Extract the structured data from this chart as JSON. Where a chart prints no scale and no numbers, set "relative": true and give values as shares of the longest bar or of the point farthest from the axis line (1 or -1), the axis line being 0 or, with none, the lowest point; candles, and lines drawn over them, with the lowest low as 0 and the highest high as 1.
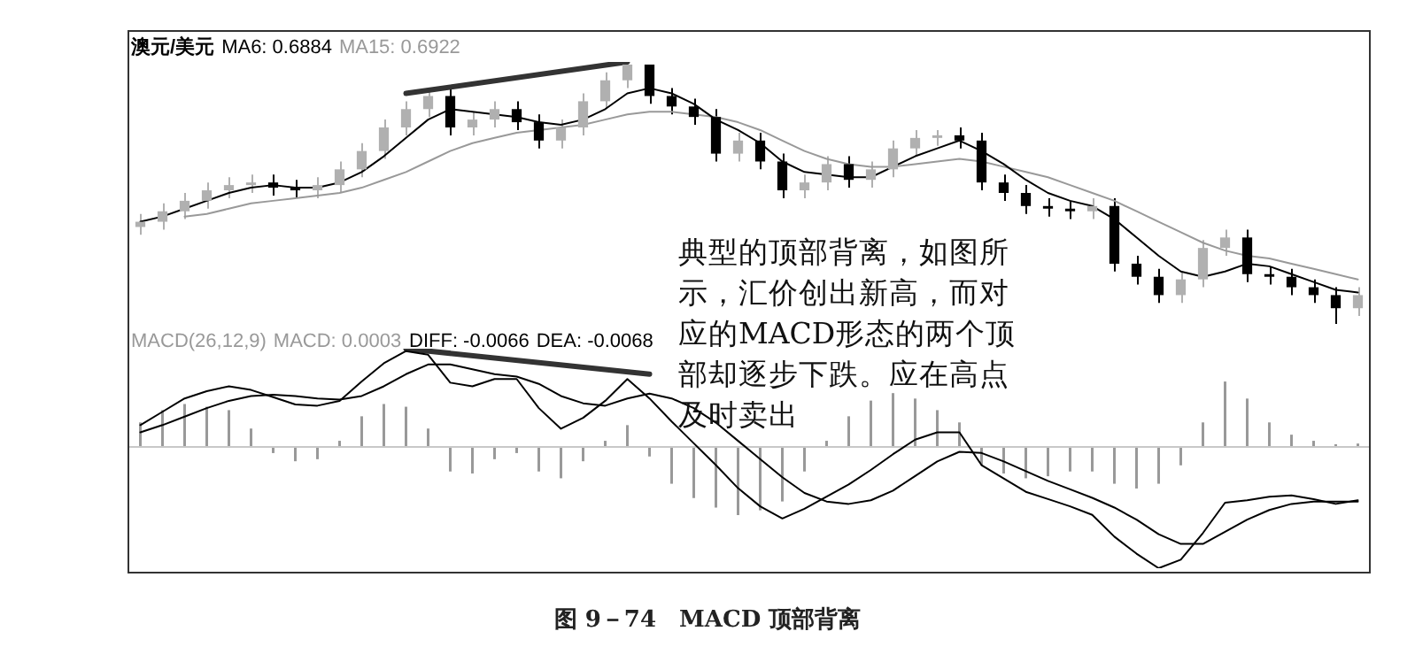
{
  "chart_data": [
    {
      "type": "candlestick",
      "title": "澳元/美元",
      "relative": true,
      "tick_labels": false,
      "colors": [
        "#b0b0b0",
        "#b0b0b0",
        "#b0b0b0",
        "#b0b0b0",
        "#b0b0b0",
        "#b0b0b0",
        "#000000",
        "#000000",
        "#b0b0b0",
        "#b0b0b0",
        "#b0b0b0",
        "#b0b0b0",
        "#b0b0b0",
        "#b0b0b0",
        "#000000",
        "#b0b0b0",
        "#b0b0b0",
        "#000000",
        "#000000",
        "#b0b0b0",
        "#b0b0b0",
        "#b0b0b0",
        "#b0b0b0",
        "#000000",
        "#000000",
        "#000000",
        "#000000",
        "#b0b0b0",
        "#000000",
        "#000000",
        "#b0b0b0",
        "#b0b0b0",
        "#000000",
        "#b0b0b0",
        "#b0b0b0",
        "#b0b0b0",
        "#b0b0b0",
        "#000000",
        "#000000",
        "#000000",
        "#000000",
        "#000000",
        "#000000",
        "#b0b0b0",
        "#000000",
        "#000000",
        "#000000",
        "#b0b0b0",
        "#b0b0b0",
        "#b0b0b0",
        "#000000",
        "#000000",
        "#000000",
        "#000000",
        "#000000",
        "#b0b0b0"
      ],
      "categories": [
        null,
        null,
        null,
        null,
        null,
        null,
        null,
        null,
        null,
        null,
        null,
        null,
        null,
        null,
        null,
        null,
        null,
        null,
        null,
        null,
        null,
        null,
        null,
        null,
        null,
        null,
        null,
        null,
        null,
        null,
        null,
        null,
        null,
        null,
        null,
        null,
        null,
        null,
        null,
        null,
        null,
        null,
        null,
        null,
        null,
        null,
        null,
        null,
        null,
        null,
        null,
        null,
        null,
        null,
        null,
        null
      ],
      "ohlc": [
        [
          0.37,
          0.42,
          0.34,
          0.39
        ],
        [
          0.39,
          0.46,
          0.36,
          0.43
        ],
        [
          0.43,
          0.5,
          0.4,
          0.47
        ],
        [
          0.47,
          0.54,
          0.44,
          0.51
        ],
        [
          0.51,
          0.56,
          0.48,
          0.53
        ],
        [
          0.53,
          0.57,
          0.5,
          0.54
        ],
        [
          0.54,
          0.57,
          0.49,
          0.52
        ],
        [
          0.52,
          0.55,
          0.48,
          0.51
        ],
        [
          0.51,
          0.56,
          0.48,
          0.53
        ],
        [
          0.53,
          0.62,
          0.5,
          0.59
        ],
        [
          0.59,
          0.69,
          0.56,
          0.66
        ],
        [
          0.66,
          0.78,
          0.63,
          0.75
        ],
        [
          0.75,
          0.85,
          0.72,
          0.82
        ],
        [
          0.82,
          0.9,
          0.79,
          0.87
        ],
        [
          0.87,
          0.9,
          0.72,
          0.75
        ],
        [
          0.75,
          0.81,
          0.72,
          0.78
        ],
        [
          0.78,
          0.85,
          0.75,
          0.82
        ],
        [
          0.82,
          0.85,
          0.74,
          0.77
        ],
        [
          0.77,
          0.8,
          0.67,
          0.7
        ],
        [
          0.7,
          0.78,
          0.67,
          0.75
        ],
        [
          0.75,
          0.88,
          0.72,
          0.85
        ],
        [
          0.85,
          0.96,
          0.82,
          0.93
        ],
        [
          0.93,
          1.0,
          0.9,
          0.99
        ],
        [
          0.99,
          0.99,
          0.84,
          0.87
        ],
        [
          0.87,
          0.9,
          0.8,
          0.83
        ],
        [
          0.83,
          0.86,
          0.76,
          0.79
        ],
        [
          0.79,
          0.82,
          0.62,
          0.65
        ],
        [
          0.65,
          0.73,
          0.62,
          0.7
        ],
        [
          0.7,
          0.73,
          0.59,
          0.62
        ],
        [
          0.62,
          0.65,
          0.48,
          0.51
        ],
        [
          0.51,
          0.57,
          0.48,
          0.54
        ],
        [
          0.54,
          0.64,
          0.51,
          0.61
        ],
        [
          0.61,
          0.64,
          0.52,
          0.55
        ],
        [
          0.55,
          0.62,
          0.52,
          0.59
        ],
        [
          0.59,
          0.7,
          0.56,
          0.67
        ],
        [
          0.67,
          0.74,
          0.64,
          0.71
        ],
        [
          0.71,
          0.74,
          0.68,
          0.72
        ],
        [
          0.72,
          0.75,
          0.67,
          0.7
        ],
        [
          0.7,
          0.73,
          0.51,
          0.54
        ],
        [
          0.54,
          0.57,
          0.47,
          0.5
        ],
        [
          0.5,
          0.53,
          0.42,
          0.45
        ],
        [
          0.45,
          0.48,
          0.41,
          0.44
        ],
        [
          0.44,
          0.47,
          0.4,
          0.43
        ],
        [
          0.43,
          0.48,
          0.4,
          0.45
        ],
        [
          0.45,
          0.48,
          0.2,
          0.23
        ],
        [
          0.23,
          0.26,
          0.15,
          0.18
        ],
        [
          0.18,
          0.21,
          0.08,
          0.11
        ],
        [
          0.11,
          0.2,
          0.08,
          0.17
        ],
        [
          0.17,
          0.32,
          0.14,
          0.29
        ],
        [
          0.29,
          0.36,
          0.26,
          0.33
        ],
        [
          0.33,
          0.36,
          0.16,
          0.19
        ],
        [
          0.19,
          0.22,
          0.15,
          0.18
        ],
        [
          0.18,
          0.21,
          0.11,
          0.14
        ],
        [
          0.14,
          0.17,
          0.08,
          0.11
        ],
        [
          0.11,
          0.14,
          0.0,
          0.06
        ],
        [
          0.06,
          0.14,
          0.03,
          0.11
        ]
      ],
      "series": [
        {
          "name": "MA6: 0.6884",
          "type": "line",
          "color": "#000000",
          "values": [
            0.39,
            0.41,
            0.44,
            0.47,
            0.5,
            0.52,
            0.53,
            0.52,
            0.52,
            0.54,
            0.58,
            0.64,
            0.71,
            0.78,
            0.82,
            0.81,
            0.8,
            0.79,
            0.77,
            0.76,
            0.78,
            0.82,
            0.88,
            0.9,
            0.88,
            0.84,
            0.78,
            0.74,
            0.69,
            0.62,
            0.58,
            0.57,
            0.56,
            0.56,
            0.6,
            0.64,
            0.67,
            0.7,
            0.66,
            0.61,
            0.55,
            0.5,
            0.47,
            0.45,
            0.4,
            0.33,
            0.26,
            0.2,
            0.18,
            0.2,
            0.23,
            0.22,
            0.19,
            0.16,
            0.13,
            0.12
          ]
        },
        {
          "name": "MA15: 0.6922",
          "type": "line",
          "color": "#999999",
          "values": [
            null,
            null,
            0.41,
            0.42,
            0.44,
            0.46,
            0.47,
            0.48,
            0.49,
            0.5,
            0.52,
            0.55,
            0.58,
            0.62,
            0.66,
            0.69,
            0.71,
            0.73,
            0.74,
            0.75,
            0.76,
            0.78,
            0.8,
            0.81,
            0.81,
            0.8,
            0.79,
            0.77,
            0.74,
            0.7,
            0.66,
            0.63,
            0.61,
            0.6,
            0.6,
            0.61,
            0.62,
            0.63,
            0.62,
            0.6,
            0.58,
            0.56,
            0.53,
            0.5,
            0.47,
            0.43,
            0.39,
            0.35,
            0.31,
            0.28,
            0.26,
            0.25,
            0.23,
            0.21,
            0.19,
            0.17
          ]
        },
        {
          "type": "line",
          "color": "#333333",
          "values": [
            null,
            null,
            null,
            null,
            null,
            null,
            null,
            null,
            null,
            null,
            null,
            null,
            0.88,
            null,
            null,
            null,
            null,
            null,
            null,
            null,
            null,
            null,
            1.0,
            null,
            null,
            null,
            null,
            null,
            null,
            null,
            null,
            null,
            null,
            null,
            null,
            null,
            null,
            null,
            null,
            null,
            null,
            null,
            null,
            null,
            null,
            null,
            null,
            null,
            null,
            null,
            null,
            null,
            null,
            null,
            null,
            null
          ]
        }
      ],
      "annotations": [
        "典型的顶部背离，如图所示，汇价创出新高，而对应的MACD形态的两个顶部却逐步下跌。应在高点及时卖出"
      ]
    },
    {
      "type": "bar",
      "title": "MACD(26,12,9)",
      "relative": true,
      "tick_labels": false,
      "categories": [
        null,
        null,
        null,
        null,
        null,
        null,
        null,
        null,
        null,
        null,
        null,
        null,
        null,
        null,
        null,
        null,
        null,
        null,
        null,
        null,
        null,
        null,
        null,
        null,
        null,
        null,
        null,
        null,
        null,
        null,
        null,
        null,
        null,
        null,
        null,
        null,
        null,
        null,
        null,
        null,
        null,
        null,
        null,
        null,
        null,
        null,
        null,
        null,
        null,
        null,
        null,
        null,
        null,
        null,
        null,
        null
      ],
      "series": [
        {
          "name": "MACD: 0.0003",
          "color": "#999999",
          "values": [
            0.36,
            0.54,
            0.63,
            0.59,
            0.54,
            0.27,
            -0.09,
            -0.21,
            -0.18,
            0.09,
            0.45,
            0.63,
            0.59,
            0.27,
            -0.36,
            -0.39,
            -0.18,
            -0.09,
            -0.36,
            -0.46,
            -0.21,
            0.09,
            0.32,
            -0.14,
            -0.54,
            -0.75,
            -0.89,
            -1,
            -0.93,
            -0.8,
            -0.36,
            0.09,
            0.45,
            0.68,
            0.79,
            0.71,
            0.54,
            0.36,
            -0.27,
            -0.39,
            -0.46,
            -0.43,
            -0.36,
            -0.36,
            -0.54,
            -0.61,
            -0.54,
            -0.27,
            0.36,
            0.96,
            0.71,
            0.36,
            0.18,
            0.09,
            0.04,
            0.05
          ]
        }
      ],
      "annotations": [
        "图 9－74　MACD 顶部背离"
      ]
    },
    {
      "type": "line",
      "relative": true,
      "tick_labels": false,
      "categories": [
        null,
        null,
        null,
        null,
        null,
        null,
        null,
        null,
        null,
        null,
        null,
        null,
        null,
        null,
        null,
        null,
        null,
        null,
        null,
        null,
        null,
        null,
        null,
        null,
        null,
        null,
        null,
        null,
        null,
        null,
        null,
        null,
        null,
        null,
        null,
        null,
        null,
        null,
        null,
        null,
        null,
        null,
        null,
        null,
        null,
        null,
        null,
        null,
        null,
        null,
        null,
        null,
        null,
        null,
        null,
        null
      ],
      "series": [
        {
          "name": "DIFF: -0.0066",
          "color": "#000000",
          "values": [
            0.18,
            0.29,
            0.4,
            0.46,
            0.5,
            0.47,
            0.41,
            0.35,
            0.34,
            0.38,
            0.54,
            0.69,
            0.79,
            0.76,
            0.53,
            0.5,
            0.56,
            0.56,
            0.32,
            0.15,
            0.24,
            0.38,
            0.56,
            0.4,
            0.21,
            0.03,
            -0.15,
            -0.34,
            -0.49,
            -0.59,
            -0.51,
            -0.41,
            -0.31,
            -0.19,
            -0.06,
            0.06,
            0.12,
            0.12,
            -0.15,
            -0.26,
            -0.37,
            -0.43,
            -0.49,
            -0.56,
            -0.74,
            -0.88,
            -1,
            -0.93,
            -0.71,
            -0.46,
            -0.44,
            -0.41,
            -0.4,
            -0.43,
            -0.47,
            -0.44
          ]
        },
        {
          "name": "DEA: -0.0068",
          "color": "#000000",
          "values": [
            0.12,
            0.18,
            0.25,
            0.32,
            0.38,
            0.42,
            0.43,
            0.42,
            0.4,
            0.39,
            0.42,
            0.5,
            0.6,
            0.68,
            0.68,
            0.64,
            0.6,
            0.58,
            0.52,
            0.42,
            0.36,
            0.34,
            0.4,
            0.44,
            0.4,
            0.32,
            0.2,
            0.05,
            -0.1,
            -0.25,
            -0.38,
            -0.45,
            -0.47,
            -0.44,
            -0.36,
            -0.24,
            -0.12,
            -0.04,
            -0.05,
            -0.12,
            -0.2,
            -0.28,
            -0.35,
            -0.42,
            -0.5,
            -0.6,
            -0.72,
            -0.8,
            -0.8,
            -0.7,
            -0.6,
            -0.52,
            -0.47,
            -0.45,
            -0.45,
            -0.45
          ]
        },
        {
          "color": "#333333",
          "values": [
            null,
            null,
            null,
            null,
            null,
            null,
            null,
            null,
            null,
            null,
            null,
            null,
            0.81,
            null,
            null,
            null,
            null,
            null,
            null,
            null,
            null,
            null,
            null,
            0.6,
            null,
            null,
            null,
            null,
            null,
            null,
            null,
            null,
            null,
            null,
            null,
            null,
            null,
            null,
            null,
            null,
            null,
            null,
            null,
            null,
            null,
            null,
            null,
            null,
            null,
            null,
            null,
            null,
            null,
            null,
            null,
            null
          ]
        }
      ]
    }
  ]
}
